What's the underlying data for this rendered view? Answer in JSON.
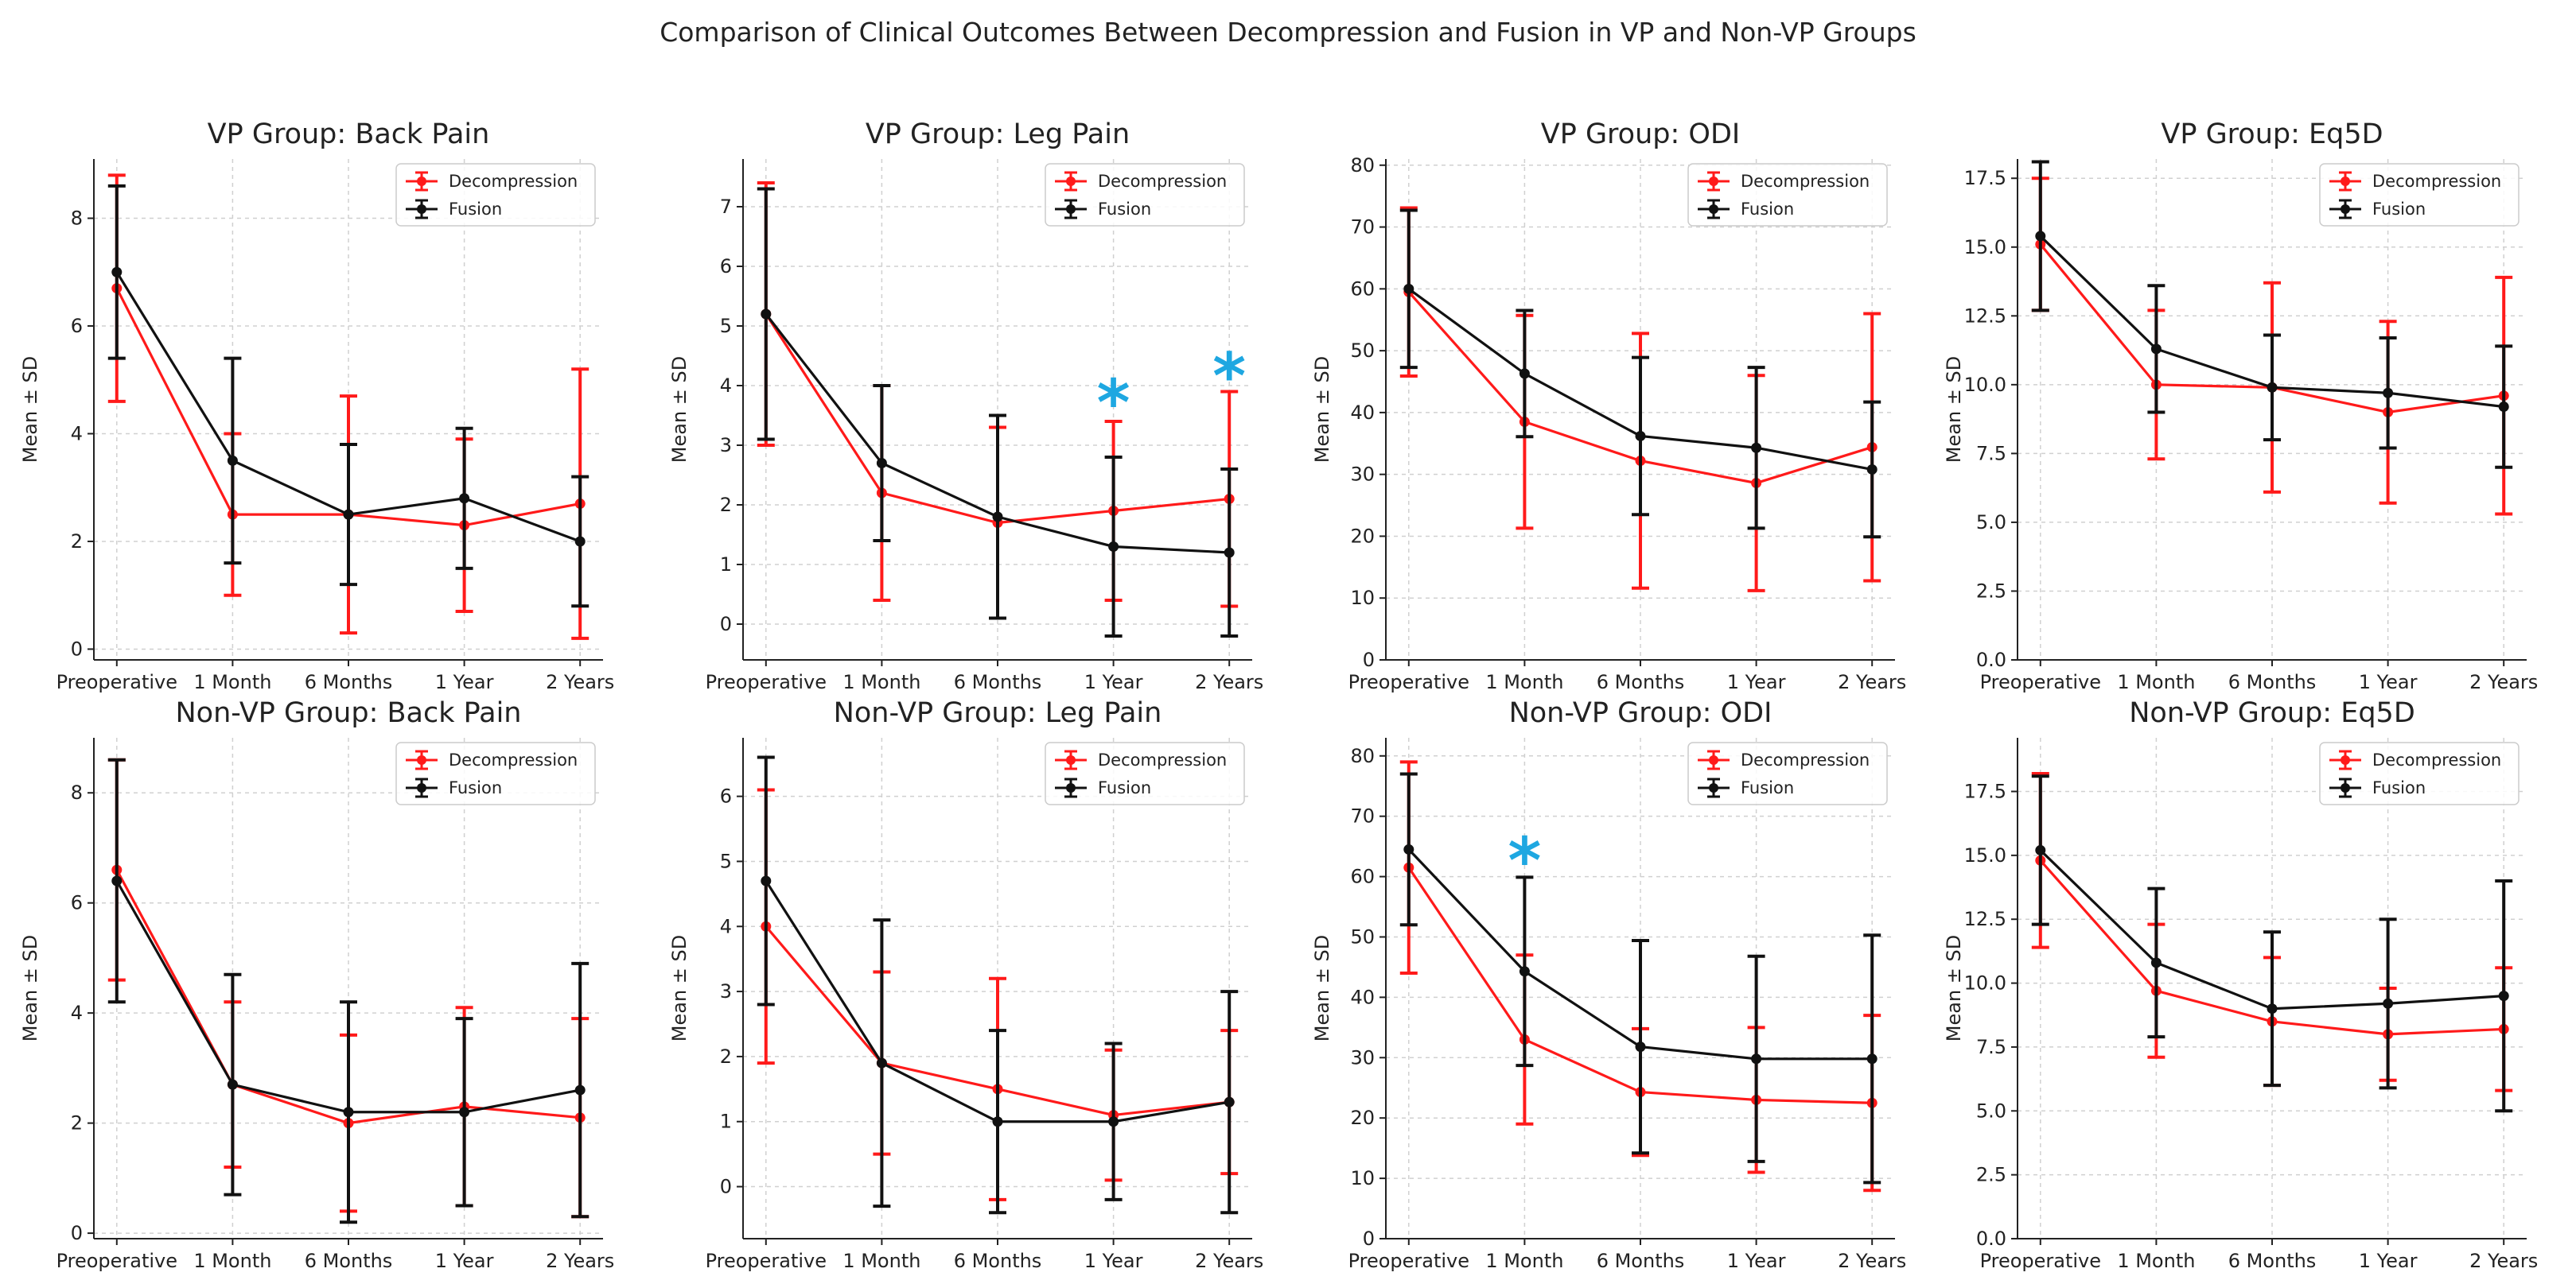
{
  "chart_data": {
    "type": "line",
    "title": "Comparison of Clinical Outcomes Between Decompression and Fusion in VP and Non-VP Groups",
    "categories": [
      "Preoperative",
      "1 Month",
      "6 Months",
      "1 Year",
      "2 Years"
    ],
    "ylabel": "Mean ± SD",
    "legend": [
      "Decompression",
      "Fusion"
    ],
    "legend_position": "top-right",
    "grid": true,
    "colors": {
      "decompression": "#ff1a1a",
      "fusion": "#111111",
      "star": "#1ea7e1"
    },
    "panels": [
      {
        "title": "VP Group: Back Pain",
        "ylim": [
          -0.2,
          9.1
        ],
        "yticks": [
          "0",
          "2",
          "4",
          "6",
          "8"
        ],
        "ytick_values": [
          0,
          2,
          4,
          6,
          8
        ],
        "series": [
          {
            "name": "Decompression",
            "values": [
              6.7,
              2.5,
              2.5,
              2.3,
              2.7
            ],
            "sd": [
              2.1,
              1.5,
              2.2,
              1.6,
              2.5
            ]
          },
          {
            "name": "Fusion",
            "values": [
              7.0,
              3.5,
              2.5,
              2.8,
              2.0
            ],
            "sd": [
              1.6,
              1.9,
              1.3,
              1.3,
              1.2
            ]
          }
        ],
        "stars": []
      },
      {
        "title": "VP Group: Leg Pain",
        "ylim": [
          -0.6,
          7.8
        ],
        "yticks": [
          "0",
          "1",
          "2",
          "3",
          "4",
          "5",
          "6",
          "7"
        ],
        "ytick_values": [
          0,
          1,
          2,
          3,
          4,
          5,
          6,
          7
        ],
        "series": [
          {
            "name": "Decompression",
            "values": [
              5.2,
              2.2,
              1.7,
              1.9,
              2.1
            ],
            "sd": [
              2.2,
              1.8,
              1.6,
              1.5,
              1.8
            ]
          },
          {
            "name": "Fusion",
            "values": [
              5.2,
              2.7,
              1.8,
              1.3,
              1.2
            ],
            "sd": [
              2.1,
              1.3,
              1.7,
              1.5,
              1.4
            ]
          }
        ],
        "stars": [
          {
            "index": 3,
            "y": 3.9
          },
          {
            "index": 4,
            "y": 4.35
          }
        ]
      },
      {
        "title": "VP Group: ODI",
        "ylim": [
          0,
          81
        ],
        "yticks": [
          "0",
          "10",
          "20",
          "30",
          "40",
          "50",
          "60",
          "70",
          "80"
        ],
        "ytick_values": [
          0,
          10,
          20,
          30,
          40,
          50,
          60,
          70,
          80
        ],
        "series": [
          {
            "name": "Decompression",
            "values": [
              59.5,
              38.5,
              32.2,
              28.6,
              34.4
            ],
            "sd": [
              13.6,
              17.2,
              20.6,
              17.4,
              21.6
            ]
          },
          {
            "name": "Fusion",
            "values": [
              60.0,
              46.3,
              36.2,
              34.3,
              30.8
            ],
            "sd": [
              12.7,
              10.2,
              12.7,
              13.0,
              10.9
            ]
          }
        ],
        "stars": []
      },
      {
        "title": "VP Group: Eq5D",
        "ylim": [
          0,
          18.2
        ],
        "yticks": [
          "0.0",
          "2.5",
          "5.0",
          "7.5",
          "10.0",
          "12.5",
          "15.0",
          "17.5"
        ],
        "ytick_values": [
          0,
          2.5,
          5,
          7.5,
          10,
          12.5,
          15,
          17.5
        ],
        "series": [
          {
            "name": "Decompression",
            "values": [
              15.1,
              10.0,
              9.9,
              9.0,
              9.6
            ],
            "sd": [
              2.4,
              2.7,
              3.8,
              3.3,
              4.3
            ]
          },
          {
            "name": "Fusion",
            "values": [
              15.4,
              11.3,
              9.9,
              9.7,
              9.2
            ],
            "sd": [
              2.7,
              2.3,
              1.9,
              2.0,
              2.2
            ]
          }
        ],
        "stars": []
      },
      {
        "title": "Non-VP Group: Back Pain",
        "ylim": [
          -0.1,
          9.0
        ],
        "yticks": [
          "0",
          "2",
          "4",
          "6",
          "8"
        ],
        "ytick_values": [
          0,
          2,
          4,
          6,
          8
        ],
        "series": [
          {
            "name": "Decompression",
            "values": [
              6.6,
              2.7,
              2.0,
              2.3,
              2.1
            ],
            "sd": [
              2.0,
              1.5,
              1.6,
              1.8,
              1.8
            ]
          },
          {
            "name": "Fusion",
            "values": [
              6.4,
              2.7,
              2.2,
              2.2,
              2.6
            ],
            "sd": [
              2.2,
              2.0,
              2.0,
              1.7,
              2.3
            ]
          }
        ],
        "stars": []
      },
      {
        "title": "Non-VP Group: Leg Pain",
        "ylim": [
          -0.8,
          6.9
        ],
        "yticks": [
          "0",
          "1",
          "2",
          "3",
          "4",
          "5",
          "6"
        ],
        "ytick_values": [
          0,
          1,
          2,
          3,
          4,
          5,
          6
        ],
        "series": [
          {
            "name": "Decompression",
            "values": [
              4.0,
              1.9,
              1.5,
              1.1,
              1.3
            ],
            "sd": [
              2.1,
              1.4,
              1.7,
              1.0,
              1.1
            ]
          },
          {
            "name": "Fusion",
            "values": [
              4.7,
              1.9,
              1.0,
              1.0,
              1.3
            ],
            "sd": [
              1.9,
              2.2,
              1.4,
              1.2,
              1.7
            ]
          }
        ],
        "stars": []
      },
      {
        "title": "Non-VP Group: ODI",
        "ylim": [
          0,
          83
        ],
        "yticks": [
          "0",
          "10",
          "20",
          "30",
          "40",
          "50",
          "60",
          "70",
          "80"
        ],
        "ytick_values": [
          0,
          10,
          20,
          30,
          40,
          50,
          60,
          70,
          80
        ],
        "series": [
          {
            "name": "Decompression",
            "values": [
              61.5,
              33.0,
              24.3,
              23.0,
              22.5
            ],
            "sd": [
              17.5,
              14.0,
              10.5,
              12.0,
              14.5
            ]
          },
          {
            "name": "Fusion",
            "values": [
              64.5,
              44.3,
              31.8,
              29.8,
              29.8
            ],
            "sd": [
              12.5,
              15.6,
              17.6,
              17.0,
              20.5
            ]
          }
        ],
        "stars": [
          {
            "index": 1,
            "y": 64.5
          }
        ]
      },
      {
        "title": "Non-VP Group: Eq5D",
        "ylim": [
          0,
          19.6
        ],
        "yticks": [
          "0.0",
          "2.5",
          "5.0",
          "7.5",
          "10.0",
          "12.5",
          "15.0",
          "17.5"
        ],
        "ytick_values": [
          0,
          2.5,
          5,
          7.5,
          10,
          12.5,
          15,
          17.5
        ],
        "series": [
          {
            "name": "Decompression",
            "values": [
              14.8,
              9.7,
              8.5,
              8.0,
              8.2
            ],
            "sd": [
              3.4,
              2.6,
              2.5,
              1.8,
              2.4
            ]
          },
          {
            "name": "Fusion",
            "values": [
              15.2,
              10.8,
              9.0,
              9.2,
              9.5
            ],
            "sd": [
              2.9,
              2.9,
              3.0,
              3.3,
              4.5
            ]
          }
        ],
        "stars": []
      }
    ]
  }
}
